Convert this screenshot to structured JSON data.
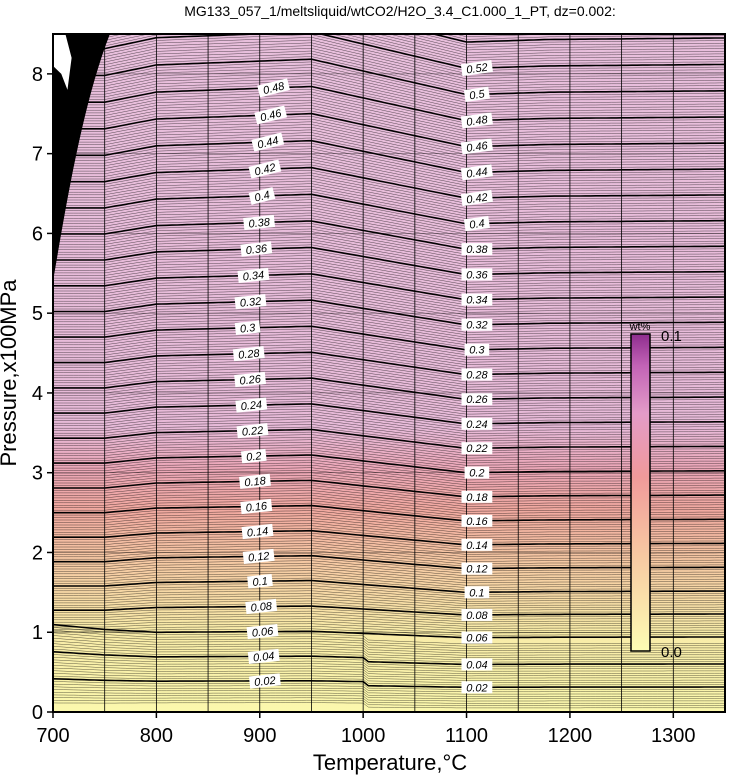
{
  "chart_data": {
    "type": "contour",
    "title": "MG133_057_1/meltsliquid/wtCO2/H2O_3.4_C1.000_1_PT, dz=0.002:",
    "xlabel": "Temperature,°C",
    "ylabel": "Pressure,x100MPa",
    "xlim": [
      700,
      1350
    ],
    "ylim": [
      0,
      8.5
    ],
    "x_ticks": [
      700,
      800,
      900,
      1000,
      1100,
      1200,
      1300
    ],
    "y_ticks": [
      0,
      1,
      2,
      3,
      4,
      5,
      6,
      7,
      8
    ],
    "grid": true,
    "contour_interval": 0.002,
    "labeled_interval": 0.02,
    "contour_levels_labeled": [
      0.02,
      0.04,
      0.06,
      0.08,
      0.1,
      0.12,
      0.14,
      0.16,
      0.18,
      0.2,
      0.22,
      0.24,
      0.26,
      0.28,
      0.3,
      0.32,
      0.34,
      0.36,
      0.38,
      0.4,
      0.42,
      0.44,
      0.46,
      0.48,
      0.5,
      0.52
    ],
    "contour_labels": {
      "left_col": [
        "0.02",
        "0.04",
        "0.06",
        "0.08",
        "0.1",
        "0.12",
        "0.14",
        "0.16",
        "0.18",
        "0.2",
        "0.22",
        "0.24",
        "0.26",
        "0.28",
        "0.3",
        "0.32",
        "0.34",
        "0.36",
        "0.38",
        "0.4",
        "0.42",
        "0.44",
        "0.46",
        "0.48"
      ],
      "right_col": [
        "0.02",
        "0.04",
        "0.06",
        "0.08",
        "0.1",
        "0.12",
        "0.14",
        "0.16",
        "0.18",
        "0.2",
        "0.22",
        "0.24",
        "0.26",
        "0.28",
        "0.3",
        "0.32",
        "0.34",
        "0.36",
        "0.38",
        "0.4",
        "0.42",
        "0.44",
        "0.46",
        "0.48",
        "0.5",
        "0.52"
      ],
      "top_right": [
        "0.52",
        "0.5",
        "0.48"
      ],
      "edge": [
        "0.46",
        "0.5"
      ]
    },
    "colorbar": {
      "unit": "wt%",
      "min_label": "0.0",
      "max_label": "0.1",
      "range": [
        0.0,
        0.1
      ],
      "colors": [
        "#fdfdb4",
        "#f9cfa4",
        "#f0a0a0",
        "#e3a3cf",
        "#c060b8",
        "#903090"
      ]
    },
    "fill_colors": {
      "low": "#fbf7ab",
      "mid": "#f2a6a0",
      "high": "#e7bcd9"
    }
  }
}
